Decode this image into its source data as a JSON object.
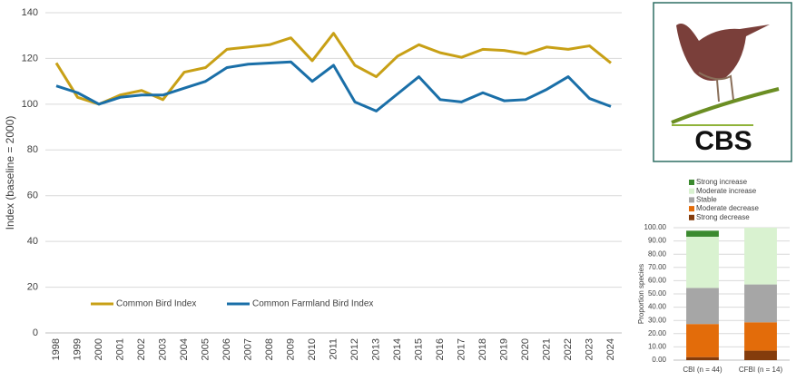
{
  "chart_data": [
    {
      "type": "line",
      "y_label": "Index (baseline = 2000)",
      "categories": [
        "1998",
        "1999",
        "2000",
        "2001",
        "2002",
        "2003",
        "2004",
        "2005",
        "2006",
        "2007",
        "2008",
        "2009",
        "2010",
        "2011",
        "2012",
        "2013",
        "2014",
        "2015",
        "2016",
        "2017",
        "2018",
        "2019",
        "2020",
        "2021",
        "2022",
        "2023",
        "2024"
      ],
      "series": [
        {
          "name": "Common Bird Index",
          "color": "#c8a016",
          "values": [
            118,
            103,
            100,
            104,
            106,
            102,
            114,
            116,
            124,
            125,
            126,
            129,
            119,
            131,
            117,
            112,
            121,
            126,
            122.5,
            120.5,
            124,
            123.5,
            122,
            125,
            124,
            125.5,
            118
          ]
        },
        {
          "name": "Common Farmland Bird Index",
          "color": "#1a6fa8",
          "values": [
            108,
            105,
            100,
            103,
            104,
            104,
            107,
            110,
            116,
            117.5,
            118,
            118.5,
            110,
            117,
            101,
            97,
            104.5,
            112,
            102,
            101,
            105,
            101.5,
            102,
            106.5,
            112,
            102.5,
            99
          ]
        }
      ],
      "ylim": [
        0,
        140
      ],
      "yticks": [
        0,
        20,
        40,
        60,
        80,
        100,
        120,
        140
      ],
      "grid": true,
      "legend": "lower left"
    },
    {
      "type": "bar",
      "stacked": true,
      "y_label": "Proportion species",
      "categories": [
        "CBI (n = 44)",
        "CFBI (n = 14)"
      ],
      "series": [
        {
          "name": "Strong decrease",
          "color": "#843c0c",
          "values": [
            2.27,
            7.14
          ]
        },
        {
          "name": "Moderate decrease",
          "color": "#e36c0a",
          "values": [
            25,
            21.43
          ]
        },
        {
          "name": "Stable",
          "color": "#a6a6a6",
          "values": [
            27.27,
            28.57
          ]
        },
        {
          "name": "Moderate increase",
          "color": "#d9f2d0",
          "values": [
            38.64,
            42.86
          ]
        },
        {
          "name": "Strong increase",
          "color": "#3b8a2f",
          "values": [
            4.55,
            0
          ]
        }
      ],
      "ylim": [
        0,
        100
      ],
      "yticks": [
        {
          "value": 0,
          "label": "0.00"
        },
        {
          "value": 10,
          "label": "10.00"
        },
        {
          "value": 20,
          "label": "20.00"
        },
        {
          "value": 30,
          "label": "30.00"
        },
        {
          "value": 40,
          "label": "40.00"
        },
        {
          "value": 50,
          "label": "50.00"
        },
        {
          "value": 60,
          "label": "60.00"
        },
        {
          "value": 70,
          "label": "70.00"
        },
        {
          "value": 80,
          "label": "80.00"
        },
        {
          "value": 90,
          "label": "90.00"
        },
        {
          "value": 100,
          "label": "100.00"
        }
      ],
      "grid": true,
      "legend": "top"
    }
  ],
  "logo": {
    "text": "CBS"
  }
}
